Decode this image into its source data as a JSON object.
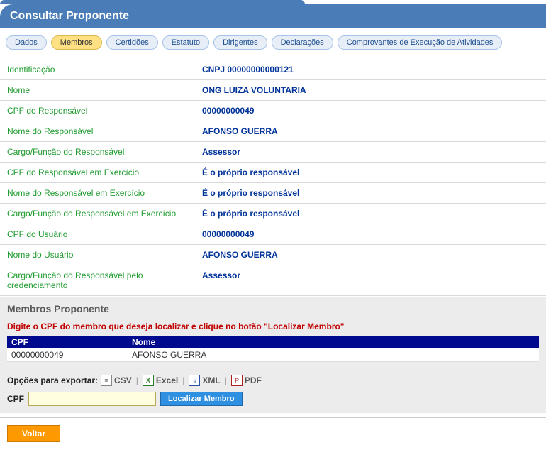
{
  "header": {
    "title": "Consultar Proponente"
  },
  "tabs": {
    "items": [
      {
        "label": "Dados",
        "active": false
      },
      {
        "label": "Membros",
        "active": true
      },
      {
        "label": "Certidões",
        "active": false
      },
      {
        "label": "Estatuto",
        "active": false
      },
      {
        "label": "Dirigentes",
        "active": false
      },
      {
        "label": "Declarações",
        "active": false
      },
      {
        "label": "Comprovantes de Execução de Atividades",
        "active": false
      }
    ]
  },
  "details": {
    "rows": [
      {
        "label": "Identificação",
        "value": "CNPJ 00000000000121"
      },
      {
        "label": "Nome",
        "value": "ONG LUIZA VOLUNTARIA"
      },
      {
        "label": "CPF do Responsável",
        "value": "00000000049"
      },
      {
        "label": "Nome do Responsável",
        "value": "AFONSO GUERRA"
      },
      {
        "label": "Cargo/Função do Responsável",
        "value": "Assessor"
      },
      {
        "label": "CPF do Responsável em Exercício",
        "value": "É o próprio responsável"
      },
      {
        "label": "Nome do Responsável em Exercício",
        "value": "É o próprio responsável"
      },
      {
        "label": "Cargo/Função do Responsável em Exercício",
        "value": "É o próprio responsável"
      },
      {
        "label": "CPF do Usuário",
        "value": "00000000049"
      },
      {
        "label": "Nome do Usuário",
        "value": "AFONSO GUERRA"
      },
      {
        "label": "Cargo/Função do Responsável pelo credenciamento",
        "value": "Assessor"
      }
    ]
  },
  "members": {
    "section_title": "Membros Proponente",
    "instruction": "Digite o CPF do membro que deseja localizar e clique no botão \"Localizar Membro\"",
    "columns": {
      "cpf": "CPF",
      "nome": "Nome"
    },
    "rows": [
      {
        "cpf": "00000000049",
        "nome": "AFONSO GUERRA"
      }
    ],
    "export": {
      "label": "Opções para exportar:",
      "csv": "CSV",
      "excel": "Excel",
      "xml": "XML",
      "pdf": "PDF"
    },
    "search": {
      "label": "CPF",
      "value": "",
      "button": "Localizar Membro"
    }
  },
  "footer": {
    "back": "Voltar"
  },
  "colors": {
    "header_bg": "#4a7db8",
    "tab_bg": "#e8eef7",
    "tab_active_bg": "#ffe083",
    "label_color": "#1f9b2f",
    "value_color": "#003399",
    "table_head_bg": "#000a8f",
    "instruction_color": "#c00000",
    "orange": "#ff9900",
    "blue_btn": "#2f8fe0"
  }
}
